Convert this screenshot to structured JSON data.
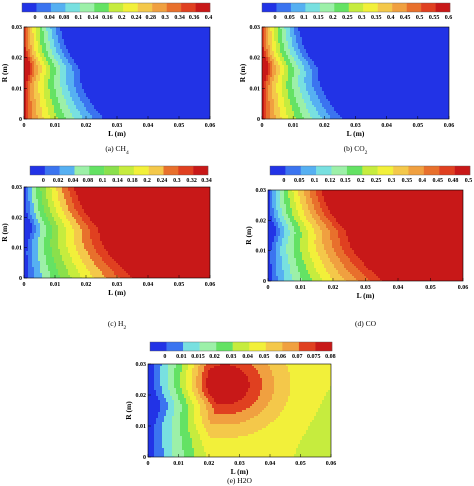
{
  "colormap": [
    "#2233e6",
    "#3b74f0",
    "#56b0f2",
    "#78e0e0",
    "#9cf0a8",
    "#64e264",
    "#8ae04c",
    "#c6ec3e",
    "#f2f03a",
    "#f4c84a",
    "#f0a040",
    "#e8702c",
    "#e04020",
    "#c81818"
  ],
  "chart_data": [
    {
      "type": "heatmap",
      "id": "a",
      "caption": "(a) CH4",
      "xlabel": "L (m)",
      "ylabel": "R (m)",
      "x_ticks": [
        "0",
        "0.01",
        "0.02",
        "0.03",
        "0.04",
        "0.05",
        "0.06"
      ],
      "y_ticks": [
        "0",
        "0.01",
        "0.02",
        "0.03"
      ],
      "xlim": [
        0,
        0.06
      ],
      "ylim": [
        0,
        0.03
      ],
      "colorbar_labels": [
        "0",
        "0.04",
        "0.08",
        "0.1",
        "0.14",
        "0.16",
        "0.2",
        "0.24",
        "0.28",
        "0.3",
        "0.34",
        "0.36",
        "0.4"
      ],
      "contour_levels": [
        0,
        0.04,
        0.08,
        0.1,
        0.14,
        0.16,
        0.2,
        0.24,
        0.28,
        0.3,
        0.34,
        0.36,
        0.4
      ],
      "trend": "decreasing"
    },
    {
      "type": "heatmap",
      "id": "b",
      "caption": "(b) CO2",
      "xlabel": "L (m)",
      "ylabel": "R (m)",
      "x_ticks": [
        "0",
        "0.01",
        "0.02",
        "0.03",
        "0.04",
        "0.05",
        "0.06"
      ],
      "y_ticks": [
        "0",
        "0.01",
        "0.02",
        "0.03"
      ],
      "xlim": [
        0,
        0.06
      ],
      "ylim": [
        0,
        0.03
      ],
      "colorbar_labels": [
        "0",
        "0.05",
        "0.1",
        "0.15",
        "0.2",
        "0.25",
        "0.3",
        "0.35",
        "0.4",
        "0.45",
        "0.5",
        "0.55",
        "0.6"
      ],
      "contour_levels": [
        0,
        0.05,
        0.1,
        0.15,
        0.2,
        0.25,
        0.3,
        0.35,
        0.4,
        0.45,
        0.5,
        0.55,
        0.6
      ],
      "trend": "decreasing"
    },
    {
      "type": "heatmap",
      "id": "c",
      "caption": "(c) H2",
      "xlabel": "L (m)",
      "ylabel": "R (m)",
      "x_ticks": [
        "0",
        "0.01",
        "0.02",
        "0.03",
        "0.04",
        "0.05",
        "0.06"
      ],
      "y_ticks": [
        "0",
        "0.01",
        "0.02",
        "0.03"
      ],
      "xlim": [
        0,
        0.06
      ],
      "ylim": [
        0,
        0.03
      ],
      "colorbar_labels": [
        "0",
        "0.02",
        "0.04",
        "0.08",
        "0.1",
        "0.14",
        "0.18",
        "0.2",
        "0.24",
        "0.3",
        "0.32",
        "0.34"
      ],
      "contour_levels": [
        0,
        0.02,
        0.04,
        0.08,
        0.1,
        0.14,
        0.18,
        0.2,
        0.24,
        0.3,
        0.32,
        0.34
      ],
      "trend": "increasing"
    },
    {
      "type": "heatmap",
      "id": "d",
      "caption": "(d) CO",
      "xlabel": "L (m)",
      "ylabel": "R (m)",
      "x_ticks": [
        "0",
        "0.01",
        "0.02",
        "0.03",
        "0.04",
        "0.05",
        "0.06"
      ],
      "y_ticks": [
        "0",
        "0.01",
        "0.02",
        "0.03"
      ],
      "xlim": [
        0,
        0.06
      ],
      "ylim": [
        0,
        0.03
      ],
      "colorbar_labels": [
        "0",
        "0.05",
        "0.1",
        "0.12",
        "0.15",
        "0.2",
        "0.25",
        "0.3",
        "0.35",
        "0.4",
        "0.45",
        "0.48",
        "0.5"
      ],
      "contour_levels": [
        0,
        0.05,
        0.1,
        0.12,
        0.15,
        0.2,
        0.25,
        0.3,
        0.35,
        0.4,
        0.45,
        0.48,
        0.5
      ],
      "trend": "increasing"
    },
    {
      "type": "heatmap",
      "id": "e",
      "caption": "(e) H2O",
      "xlabel": "L (m)",
      "ylabel": "R (m)",
      "x_ticks": [
        "0",
        "0.01",
        "0.02",
        "0.03",
        "0.04",
        "0.05",
        "0.06"
      ],
      "y_ticks": [
        "0",
        "0.01",
        "0.02",
        "0.03"
      ],
      "xlim": [
        0,
        0.06
      ],
      "ylim": [
        0,
        0.03
      ],
      "colorbar_labels": [
        "0",
        "0.01",
        "0.015",
        "0.02",
        "0.03",
        "0.04",
        "0.05",
        "0.06",
        "0.07",
        "0.075",
        "0.08"
      ],
      "contour_levels": [
        0,
        0.01,
        0.015,
        0.02,
        0.03,
        0.04,
        0.05,
        0.06,
        0.07,
        0.075,
        0.08
      ],
      "trend": "peak"
    }
  ]
}
